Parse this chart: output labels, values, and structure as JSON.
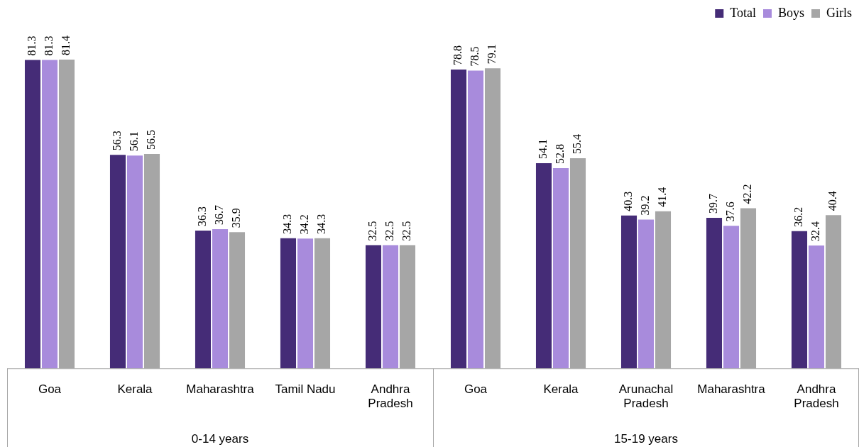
{
  "chart_data": {
    "type": "bar",
    "categories": [
      "Goa",
      "Kerala",
      "Maharashtra",
      "Tamil Nadu",
      "Andhra Pradesh",
      "Goa",
      "Kerala",
      "Arunachal Pradesh",
      "Maharashtra",
      "Andhra Pradesh"
    ],
    "series": [
      {
        "name": "Total",
        "color": "#452c77",
        "values": [
          81.3,
          56.3,
          36.3,
          34.3,
          32.5,
          78.8,
          54.1,
          40.3,
          39.7,
          36.2
        ]
      },
      {
        "name": "Boys",
        "color": "#a88bdc",
        "values": [
          81.3,
          56.1,
          36.7,
          34.2,
          32.5,
          78.5,
          52.8,
          39.2,
          37.6,
          32.4
        ]
      },
      {
        "name": "Girls",
        "color": "#a6a6a6",
        "values": [
          81.4,
          56.5,
          35.9,
          34.3,
          32.5,
          79.1,
          55.4,
          41.4,
          42.2,
          40.4
        ]
      }
    ],
    "annotations": [
      "0-14 years",
      "15-19 years"
    ],
    "data_labels": true,
    "grid": false,
    "legend": "top right"
  }
}
